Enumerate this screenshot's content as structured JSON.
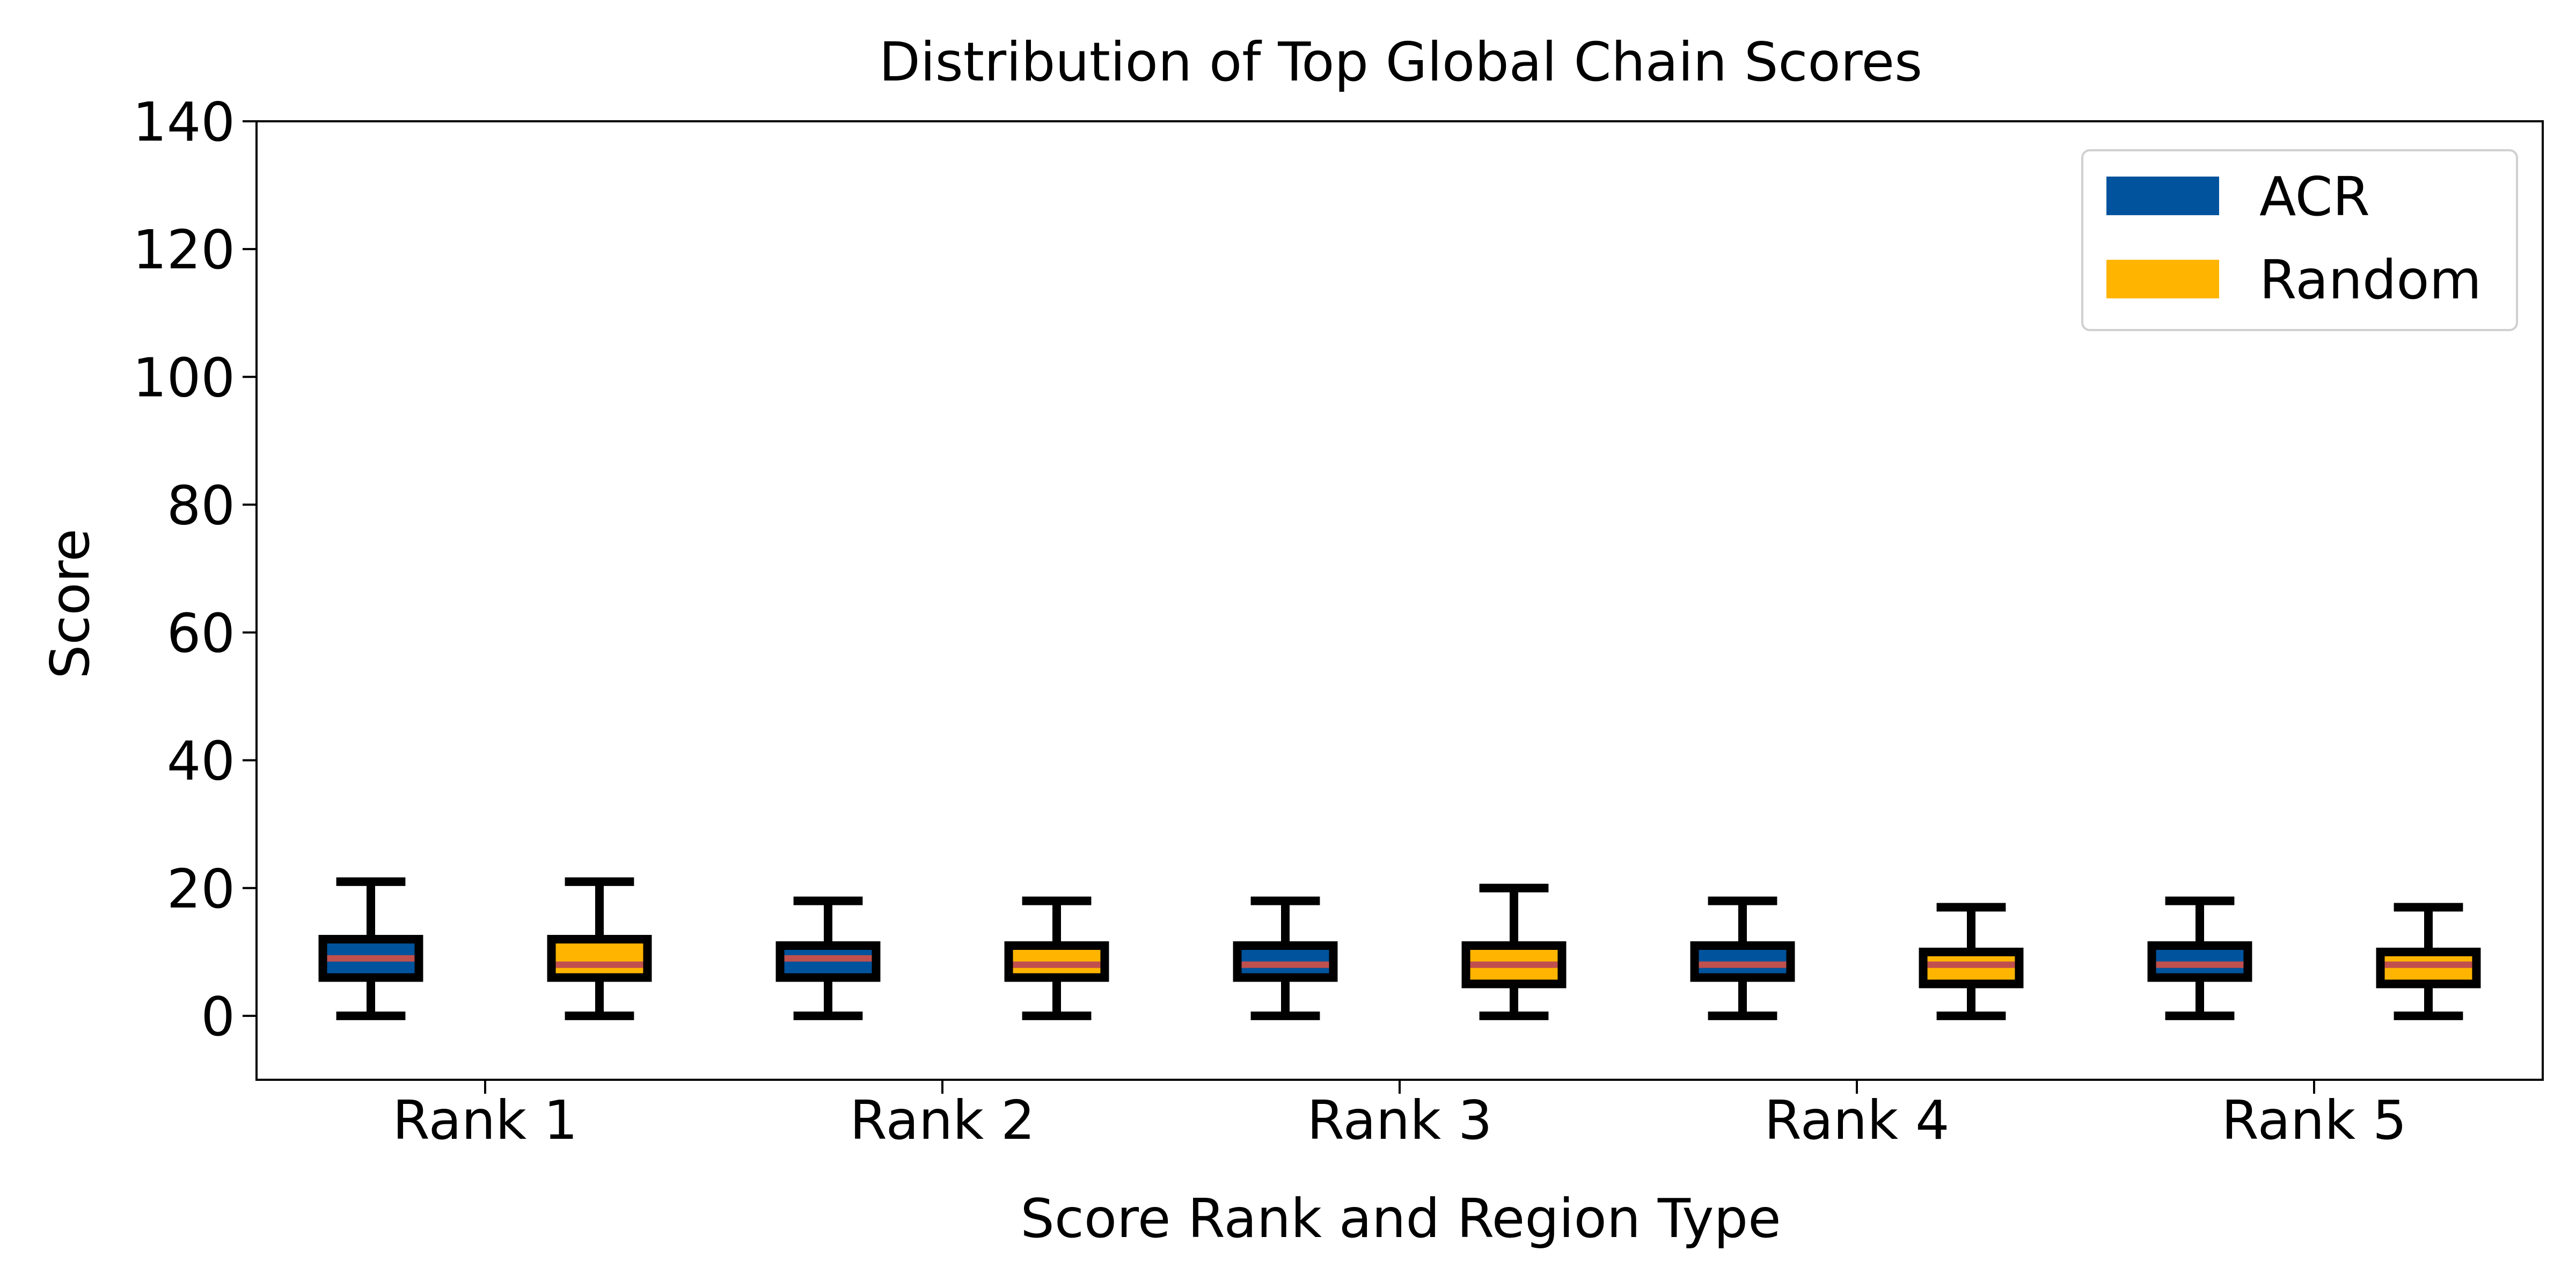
{
  "chart_data": {
    "type": "box",
    "title": "Distribution of Top Global Chain Scores",
    "xlabel": "Score Rank and Region Type",
    "ylabel": "Score",
    "ylim": [
      -10,
      140
    ],
    "yticks": [
      0,
      20,
      40,
      60,
      80,
      100,
      120,
      140
    ],
    "categories": [
      "Rank 1",
      "Rank 2",
      "Rank 3",
      "Rank 4",
      "Rank 5"
    ],
    "grid": false,
    "legend_position": "top-right",
    "series": [
      {
        "name": "ACR",
        "color": "#00539C",
        "boxes": [
          {
            "min": 0,
            "q1": 6,
            "median": 9,
            "q3": 12,
            "max": 21
          },
          {
            "min": 0,
            "q1": 6,
            "median": 9,
            "q3": 11,
            "max": 18
          },
          {
            "min": 0,
            "q1": 6,
            "median": 8,
            "q3": 11,
            "max": 18
          },
          {
            "min": 0,
            "q1": 6,
            "median": 8,
            "q3": 11,
            "max": 18
          },
          {
            "min": 0,
            "q1": 6,
            "median": 8,
            "q3": 11,
            "max": 18
          }
        ]
      },
      {
        "name": "Random",
        "color": "#FFB500",
        "boxes": [
          {
            "min": 0,
            "q1": 6,
            "median": 8,
            "q3": 12,
            "max": 21
          },
          {
            "min": 0,
            "q1": 6,
            "median": 8,
            "q3": 11,
            "max": 18
          },
          {
            "min": 0,
            "q1": 5,
            "median": 8,
            "q3": 11,
            "max": 20
          },
          {
            "min": 0,
            "q1": 5,
            "median": 8,
            "q3": 10,
            "max": 17
          },
          {
            "min": 0,
            "q1": 5,
            "median": 8,
            "q3": 10,
            "max": 17
          }
        ]
      }
    ],
    "median_color": "#C0504D",
    "box_edge_color": "#000000"
  }
}
